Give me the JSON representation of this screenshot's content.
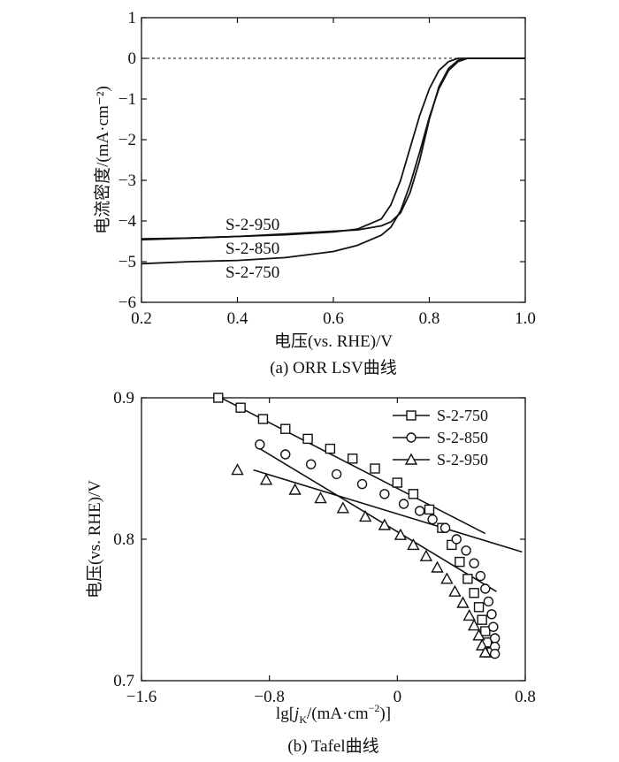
{
  "chart_data": [
    {
      "id": "a",
      "type": "line",
      "title": "(a) ORR LSV曲线",
      "xlabel": "电压(vs. RHE)/V",
      "ylabel": "电流密度/(mA·cm⁻²)",
      "xlim": [
        0.2,
        1.0
      ],
      "ylim": [
        -6,
        1
      ],
      "xticks": [
        "0.2",
        "0.4",
        "0.6",
        "0.8",
        "1.0"
      ],
      "yticks": [
        "1",
        "0",
        "−1",
        "−2",
        "−3",
        "−4",
        "−5",
        "−6"
      ],
      "reference_line": {
        "y": 0,
        "style": "dashed"
      },
      "series": [
        {
          "name": "S-2-950",
          "label": "S-2-950",
          "x": [
            0.2,
            0.3,
            0.4,
            0.5,
            0.6,
            0.65,
            0.7,
            0.72,
            0.74,
            0.76,
            0.78,
            0.8,
            0.82,
            0.84,
            0.86,
            0.88,
            0.9,
            0.95,
            1.0
          ],
          "y": [
            -4.44,
            -4.42,
            -4.38,
            -4.34,
            -4.27,
            -4.2,
            -3.95,
            -3.6,
            -3.0,
            -2.2,
            -1.4,
            -0.75,
            -0.3,
            -0.08,
            0,
            0,
            0,
            0,
            0
          ]
        },
        {
          "name": "S-2-850",
          "label": "S-2-850",
          "x": [
            0.2,
            0.3,
            0.4,
            0.5,
            0.6,
            0.65,
            0.7,
            0.72,
            0.74,
            0.76,
            0.78,
            0.8,
            0.82,
            0.84,
            0.86,
            0.88,
            0.9,
            0.95,
            1.0
          ],
          "y": [
            -4.46,
            -4.42,
            -4.38,
            -4.32,
            -4.25,
            -4.22,
            -4.12,
            -4.02,
            -3.8,
            -3.3,
            -2.5,
            -1.5,
            -0.7,
            -0.25,
            -0.05,
            0,
            0,
            0,
            0
          ]
        },
        {
          "name": "S-2-750",
          "label": "S-2-750",
          "x": [
            0.2,
            0.3,
            0.4,
            0.5,
            0.6,
            0.65,
            0.7,
            0.72,
            0.74,
            0.76,
            0.78,
            0.8,
            0.82,
            0.84,
            0.86,
            0.88,
            0.9,
            0.95,
            1.0
          ],
          "y": [
            -5.05,
            -5.0,
            -4.97,
            -4.9,
            -4.75,
            -4.6,
            -4.35,
            -4.15,
            -3.75,
            -3.1,
            -2.3,
            -1.45,
            -0.75,
            -0.3,
            -0.08,
            0,
            0,
            0,
            0
          ]
        }
      ]
    },
    {
      "id": "b",
      "type": "scatter",
      "title": "(b) Tafel曲线",
      "xlabel_parts": [
        "lg[",
        "j",
        "K",
        "/(mA·cm",
        "−2",
        ")]"
      ],
      "ylabel": "电压(vs. RHE)/V",
      "xlim": [
        -1.6,
        0.8
      ],
      "ylim": [
        0.7,
        0.9
      ],
      "xticks": [
        "−1.6",
        "−0.8",
        "0",
        "0.8"
      ],
      "yticks": [
        "0.9",
        "0.8",
        "0.7"
      ],
      "legend": [
        "S-2-750",
        "S-2-850",
        "S-2-950"
      ],
      "series": [
        {
          "name": "S-2-750",
          "marker": "square",
          "x": [
            -1.12,
            -0.98,
            -0.84,
            -0.7,
            -0.56,
            -0.42,
            -0.28,
            -0.14,
            0,
            0.1,
            0.2,
            0.28,
            0.34,
            0.39,
            0.44,
            0.48,
            0.51,
            0.53,
            0.55,
            0.56,
            0.57
          ],
          "y": [
            0.9,
            0.893,
            0.885,
            0.878,
            0.871,
            0.864,
            0.857,
            0.85,
            0.84,
            0.832,
            0.821,
            0.808,
            0.796,
            0.784,
            0.772,
            0.762,
            0.752,
            0.743,
            0.735,
            0.727,
            0.72
          ],
          "fit": {
            "x": [
              -1.12,
              0.55
            ],
            "y": [
              0.901,
              0.804
            ]
          }
        },
        {
          "name": "S-2-850",
          "marker": "circle",
          "x": [
            -0.86,
            -0.7,
            -0.54,
            -0.38,
            -0.22,
            -0.08,
            0.04,
            0.14,
            0.22,
            0.3,
            0.37,
            0.43,
            0.48,
            0.52,
            0.55,
            0.57,
            0.59,
            0.6,
            0.61,
            0.61,
            0.61
          ],
          "y": [
            0.867,
            0.86,
            0.853,
            0.846,
            0.839,
            0.832,
            0.825,
            0.82,
            0.814,
            0.808,
            0.8,
            0.792,
            0.783,
            0.774,
            0.765,
            0.756,
            0.747,
            0.738,
            0.73,
            0.724,
            0.719
          ],
          "fit": {
            "x": [
              -0.86,
              0.62
            ],
            "y": [
              0.864,
              0.763
            ]
          }
        },
        {
          "name": "S-2-950",
          "marker": "triangle",
          "x": [
            -1.0,
            -0.82,
            -0.64,
            -0.48,
            -0.34,
            -0.2,
            -0.08,
            0.02,
            0.1,
            0.18,
            0.25,
            0.31,
            0.36,
            0.41,
            0.45,
            0.48,
            0.51,
            0.53,
            0.55
          ],
          "y": [
            0.849,
            0.842,
            0.835,
            0.829,
            0.822,
            0.816,
            0.81,
            0.803,
            0.796,
            0.788,
            0.78,
            0.772,
            0.763,
            0.755,
            0.746,
            0.739,
            0.732,
            0.725,
            0.72
          ],
          "fit": {
            "x": [
              -0.9,
              0.78
            ],
            "y": [
              0.849,
              0.791
            ]
          }
        }
      ]
    }
  ]
}
